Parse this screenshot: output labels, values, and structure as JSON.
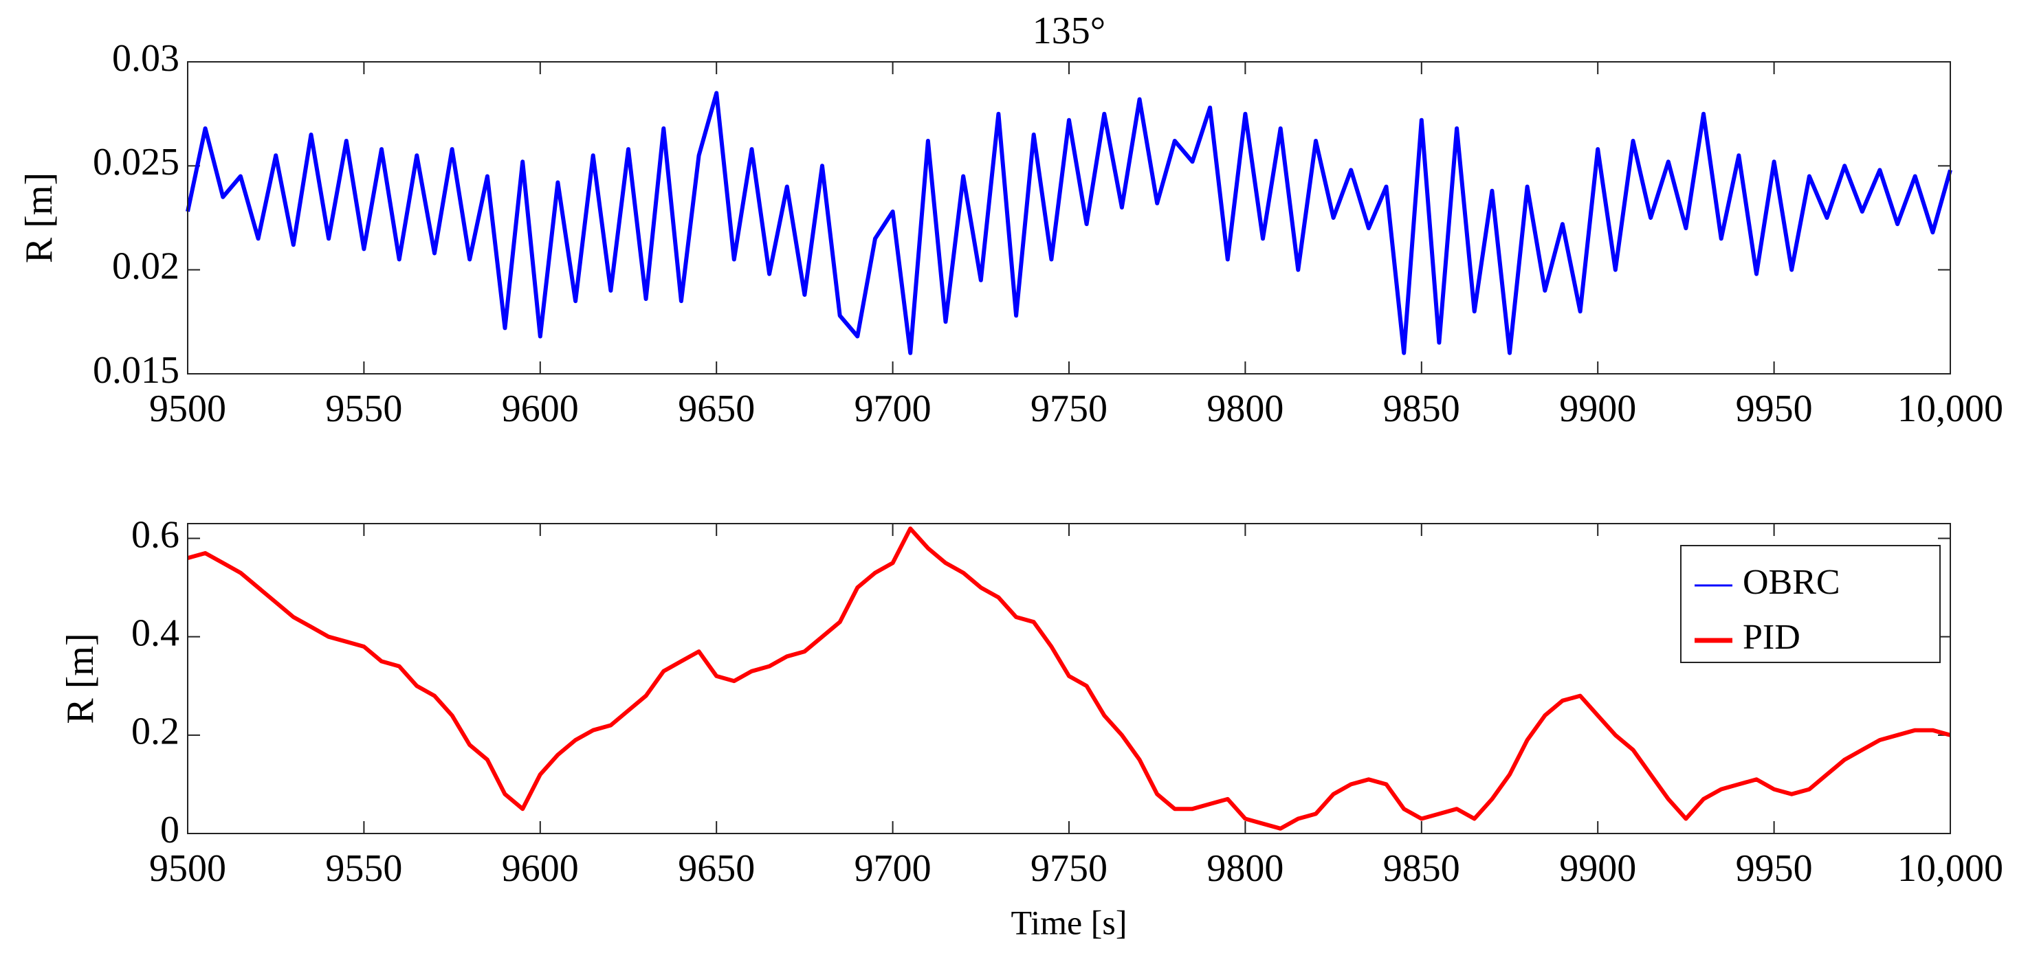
{
  "chart_data": [
    {
      "type": "line",
      "title": "135°",
      "ylabel": "R [m]",
      "x": [
        9500,
        9505,
        9510,
        9515,
        9520,
        9525,
        9530,
        9535,
        9540,
        9545,
        9550,
        9555,
        9560,
        9565,
        9570,
        9575,
        9580,
        9585,
        9590,
        9595,
        9600,
        9605,
        9610,
        9615,
        9620,
        9625,
        9630,
        9635,
        9640,
        9645,
        9650,
        9655,
        9660,
        9665,
        9670,
        9675,
        9680,
        9685,
        9690,
        9695,
        9700,
        9705,
        9710,
        9715,
        9720,
        9725,
        9730,
        9735,
        9740,
        9745,
        9750,
        9755,
        9760,
        9765,
        9770,
        9775,
        9780,
        9785,
        9790,
        9795,
        9800,
        9805,
        9810,
        9815,
        9820,
        9825,
        9830,
        9835,
        9840,
        9845,
        9850,
        9855,
        9860,
        9865,
        9870,
        9875,
        9880,
        9885,
        9890,
        9895,
        9900,
        9905,
        9910,
        9915,
        9920,
        9925,
        9930,
        9935,
        9940,
        9945,
        9950,
        9955,
        9960,
        9965,
        9970,
        9975,
        9980,
        9985,
        9990,
        9995,
        10000
      ],
      "series": [
        {
          "name": "OBRC",
          "color": "#0000ff",
          "values": [
            0.0228,
            0.0268,
            0.0235,
            0.0245,
            0.0215,
            0.0255,
            0.0212,
            0.0265,
            0.0215,
            0.0262,
            0.021,
            0.0258,
            0.0205,
            0.0255,
            0.0208,
            0.0258,
            0.0205,
            0.0245,
            0.0172,
            0.0252,
            0.0168,
            0.0242,
            0.0185,
            0.0255,
            0.019,
            0.0258,
            0.0186,
            0.0268,
            0.0185,
            0.0255,
            0.0285,
            0.0205,
            0.0258,
            0.0198,
            0.024,
            0.0188,
            0.025,
            0.0178,
            0.0168,
            0.0215,
            0.0228,
            0.016,
            0.0262,
            0.0175,
            0.0245,
            0.0195,
            0.0275,
            0.0178,
            0.0265,
            0.0205,
            0.0272,
            0.0222,
            0.0275,
            0.023,
            0.0282,
            0.0232,
            0.0262,
            0.0252,
            0.0278,
            0.0205,
            0.0275,
            0.0215,
            0.0268,
            0.02,
            0.0262,
            0.0225,
            0.0248,
            0.022,
            0.024,
            0.016,
            0.0272,
            0.0165,
            0.0268,
            0.018,
            0.0238,
            0.016,
            0.024,
            0.019,
            0.0222,
            0.018,
            0.0258,
            0.02,
            0.0262,
            0.0225,
            0.0252,
            0.022,
            0.0275,
            0.0215,
            0.0255,
            0.0198,
            0.0252,
            0.02,
            0.0245,
            0.0225,
            0.025,
            0.0228,
            0.0248,
            0.0222,
            0.0245,
            0.0218,
            0.0248
          ]
        }
      ],
      "xlim": [
        9500,
        10000
      ],
      "xticks": [
        9500,
        9550,
        9600,
        9650,
        9700,
        9750,
        9800,
        9850,
        9900,
        9950,
        {
          "value": 10000,
          "label": "10,000"
        }
      ],
      "ylim": [
        0.015,
        0.03
      ],
      "yticks": [
        0.015,
        0.02,
        0.025,
        0.03
      ]
    },
    {
      "type": "line",
      "xlabel": "Time [s]",
      "ylabel": "R [m]",
      "legend": "upper right",
      "x": [
        9500,
        9505,
        9510,
        9515,
        9520,
        9525,
        9530,
        9535,
        9540,
        9545,
        9550,
        9555,
        9560,
        9565,
        9570,
        9575,
        9580,
        9585,
        9590,
        9595,
        9600,
        9605,
        9610,
        9615,
        9620,
        9625,
        9630,
        9635,
        9640,
        9645,
        9650,
        9655,
        9660,
        9665,
        9670,
        9675,
        9680,
        9685,
        9690,
        9695,
        9700,
        9705,
        9710,
        9715,
        9720,
        9725,
        9730,
        9735,
        9740,
        9745,
        9750,
        9755,
        9760,
        9765,
        9770,
        9775,
        9780,
        9785,
        9790,
        9795,
        9800,
        9805,
        9810,
        9815,
        9820,
        9825,
        9830,
        9835,
        9840,
        9845,
        9850,
        9855,
        9860,
        9865,
        9870,
        9875,
        9880,
        9885,
        9890,
        9895,
        9900,
        9905,
        9910,
        9915,
        9920,
        9925,
        9930,
        9935,
        9940,
        9945,
        9950,
        9955,
        9960,
        9965,
        9970,
        9975,
        9980,
        9985,
        9990,
        9995,
        10000
      ],
      "series": [
        {
          "name": "PID",
          "color": "#ff0000",
          "values": [
            0.56,
            0.57,
            0.55,
            0.53,
            0.5,
            0.47,
            0.44,
            0.42,
            0.4,
            0.39,
            0.38,
            0.35,
            0.34,
            0.3,
            0.28,
            0.24,
            0.18,
            0.15,
            0.08,
            0.05,
            0.12,
            0.16,
            0.19,
            0.21,
            0.22,
            0.25,
            0.28,
            0.33,
            0.35,
            0.37,
            0.32,
            0.31,
            0.33,
            0.34,
            0.36,
            0.37,
            0.4,
            0.43,
            0.5,
            0.53,
            0.55,
            0.62,
            0.58,
            0.55,
            0.53,
            0.5,
            0.48,
            0.44,
            0.43,
            0.38,
            0.32,
            0.3,
            0.24,
            0.2,
            0.15,
            0.08,
            0.05,
            0.05,
            0.06,
            0.07,
            0.03,
            0.02,
            0.01,
            0.03,
            0.04,
            0.08,
            0.1,
            0.11,
            0.1,
            0.05,
            0.03,
            0.04,
            0.05,
            0.03,
            0.07,
            0.12,
            0.19,
            0.24,
            0.27,
            0.28,
            0.24,
            0.2,
            0.17,
            0.12,
            0.07,
            0.03,
            0.07,
            0.09,
            0.1,
            0.11,
            0.09,
            0.08,
            0.09,
            0.12,
            0.15,
            0.17,
            0.19,
            0.2,
            0.21,
            0.21,
            0.2
          ]
        }
      ],
      "xlim": [
        9500,
        10000
      ],
      "xticks": [
        9500,
        9550,
        9600,
        9650,
        9700,
        9750,
        9800,
        9850,
        9900,
        9950,
        {
          "value": 10000,
          "label": "10,000"
        }
      ],
      "ylim": [
        0,
        0.63
      ],
      "yticks": [
        0,
        0.2,
        0.4,
        0.6
      ]
    }
  ]
}
